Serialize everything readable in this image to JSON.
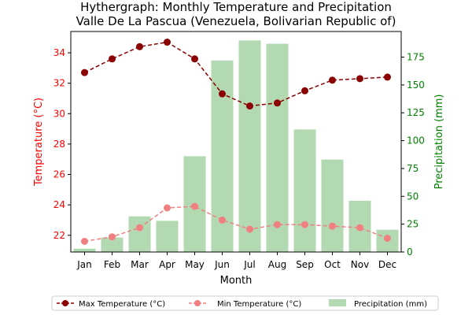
{
  "chart_data": {
    "type": "bar+line",
    "title": "Hythergraph: Monthly Temperature and Precipitation",
    "subtitle": "Valle De La Pascua (Venezuela, Bolivarian Republic of)",
    "xlabel": "Month",
    "ylabel_left": "Temperature (°C)",
    "ylabel_right": "Precipitation (mm)",
    "categories": [
      "Jan",
      "Feb",
      "Mar",
      "Apr",
      "May",
      "Jun",
      "Jul",
      "Aug",
      "Sep",
      "Oct",
      "Nov",
      "Dec"
    ],
    "ylim_left": [
      20.9,
      35.4
    ],
    "ylim_right": [
      0,
      198
    ],
    "yticks_left": [
      "22",
      "24",
      "26",
      "28",
      "30",
      "32",
      "34"
    ],
    "yticks_right": [
      "0",
      "25",
      "50",
      "75",
      "100",
      "125",
      "150",
      "175"
    ],
    "legend_position": "bottom",
    "series": [
      {
        "name": "Max Temperature (°C)",
        "axis": "left",
        "kind": "line",
        "color": "#8b0000",
        "values": [
          32.7,
          33.6,
          34.4,
          34.7,
          33.6,
          31.3,
          30.5,
          30.7,
          31.5,
          32.2,
          32.3,
          32.4
        ]
      },
      {
        "name": "Min Temperature (°C)",
        "axis": "left",
        "kind": "line",
        "color": "#f08080",
        "values": [
          21.6,
          21.9,
          22.5,
          23.8,
          23.9,
          23.0,
          22.4,
          22.7,
          22.7,
          22.6,
          22.5,
          21.8
        ]
      },
      {
        "name": "Precipitation (mm)",
        "axis": "right",
        "kind": "bar",
        "color": "#b2d9b2",
        "values": [
          3,
          13,
          32,
          28,
          86,
          172,
          190,
          187,
          110,
          83,
          46,
          20
        ]
      }
    ]
  }
}
